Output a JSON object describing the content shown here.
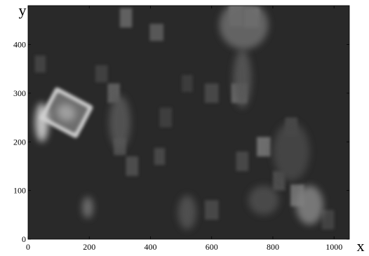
{
  "chart_data": {
    "type": "heatmap",
    "title": "",
    "xlabel": "x",
    "ylabel": "y",
    "xlim": [
      0,
      1050
    ],
    "ylim": [
      0,
      480
    ],
    "x_ticks": [
      0,
      200,
      400,
      600,
      800,
      1000
    ],
    "y_ticks": [
      0,
      100,
      200,
      300,
      400
    ],
    "x_tick_labels": [
      "0",
      "200",
      "400",
      "600",
      "800",
      "1000"
    ],
    "y_tick_labels": [
      "0",
      "100",
      "200",
      "300",
      "400"
    ],
    "grid": false,
    "colormap": "grayscale",
    "background_intensity": 0.16,
    "features": [
      {
        "name": "tilted-rectangle",
        "kind": "tilted-rect",
        "cx": 125,
        "cy": 260,
        "w": 120,
        "h": 88,
        "angle": -62,
        "intensity": 0.78
      },
      {
        "name": "left-edge-blob",
        "kind": "ellipse",
        "cx": 45,
        "cy": 240,
        "rx": 22,
        "ry": 40,
        "intensity": 0.82
      },
      {
        "name": "blob-200-60",
        "kind": "ellipse",
        "cx": 195,
        "cy": 65,
        "rx": 18,
        "ry": 22,
        "intensity": 0.45
      },
      {
        "name": "blob-300-230",
        "kind": "ellipse",
        "cx": 300,
        "cy": 240,
        "rx": 35,
        "ry": 55,
        "intensity": 0.34
      },
      {
        "name": "blob-700-330",
        "kind": "ellipse",
        "cx": 700,
        "cy": 330,
        "rx": 30,
        "ry": 60,
        "intensity": 0.34
      },
      {
        "name": "blob-710-460",
        "kind": "ellipse",
        "cx": 705,
        "cy": 440,
        "rx": 80,
        "ry": 50,
        "intensity": 0.42
      },
      {
        "name": "blob-860-180",
        "kind": "ellipse",
        "cx": 860,
        "cy": 180,
        "rx": 60,
        "ry": 60,
        "intensity": 0.28
      },
      {
        "name": "blob-920-70",
        "kind": "ellipse",
        "cx": 920,
        "cy": 70,
        "rx": 45,
        "ry": 40,
        "intensity": 0.5
      },
      {
        "name": "blob-520-50",
        "kind": "ellipse",
        "cx": 520,
        "cy": 55,
        "rx": 30,
        "ry": 35,
        "intensity": 0.32
      },
      {
        "name": "blob-780-70",
        "kind": "ellipse",
        "cx": 770,
        "cy": 80,
        "rx": 50,
        "ry": 30,
        "intensity": 0.3
      }
    ],
    "patches": [
      {
        "x": 320,
        "y": 455,
        "w": 40,
        "h": 40,
        "intensity": 0.42
      },
      {
        "x": 420,
        "y": 425,
        "w": 45,
        "h": 35,
        "intensity": 0.38
      },
      {
        "x": 730,
        "y": 455,
        "w": 50,
        "h": 40,
        "intensity": 0.58
      },
      {
        "x": 690,
        "y": 300,
        "w": 50,
        "h": 40,
        "intensity": 0.46
      },
      {
        "x": 770,
        "y": 190,
        "w": 45,
        "h": 40,
        "intensity": 0.48
      },
      {
        "x": 280,
        "y": 300,
        "w": 40,
        "h": 40,
        "intensity": 0.4
      },
      {
        "x": 160,
        "y": 250,
        "w": 40,
        "h": 40,
        "intensity": 0.34
      },
      {
        "x": 340,
        "y": 150,
        "w": 40,
        "h": 40,
        "intensity": 0.32
      },
      {
        "x": 430,
        "y": 170,
        "w": 35,
        "h": 35,
        "intensity": 0.3
      },
      {
        "x": 600,
        "y": 300,
        "w": 45,
        "h": 40,
        "intensity": 0.3
      },
      {
        "x": 880,
        "y": 90,
        "w": 45,
        "h": 45,
        "intensity": 0.48
      },
      {
        "x": 820,
        "y": 120,
        "w": 40,
        "h": 40,
        "intensity": 0.32
      },
      {
        "x": 600,
        "y": 60,
        "w": 45,
        "h": 40,
        "intensity": 0.3
      },
      {
        "x": 40,
        "y": 360,
        "w": 35,
        "h": 35,
        "intensity": 0.28
      },
      {
        "x": 450,
        "y": 250,
        "w": 40,
        "h": 40,
        "intensity": 0.26
      },
      {
        "x": 680,
        "y": 460,
        "w": 45,
        "h": 45,
        "intensity": 0.5
      },
      {
        "x": 860,
        "y": 230,
        "w": 40,
        "h": 40,
        "intensity": 0.3
      },
      {
        "x": 520,
        "y": 320,
        "w": 35,
        "h": 35,
        "intensity": 0.25
      },
      {
        "x": 240,
        "y": 340,
        "w": 40,
        "h": 35,
        "intensity": 0.27
      },
      {
        "x": 980,
        "y": 40,
        "w": 40,
        "h": 40,
        "intensity": 0.28
      },
      {
        "x": 700,
        "y": 160,
        "w": 40,
        "h": 40,
        "intensity": 0.3
      },
      {
        "x": 300,
        "y": 190,
        "w": 40,
        "h": 35,
        "intensity": 0.33
      }
    ]
  }
}
